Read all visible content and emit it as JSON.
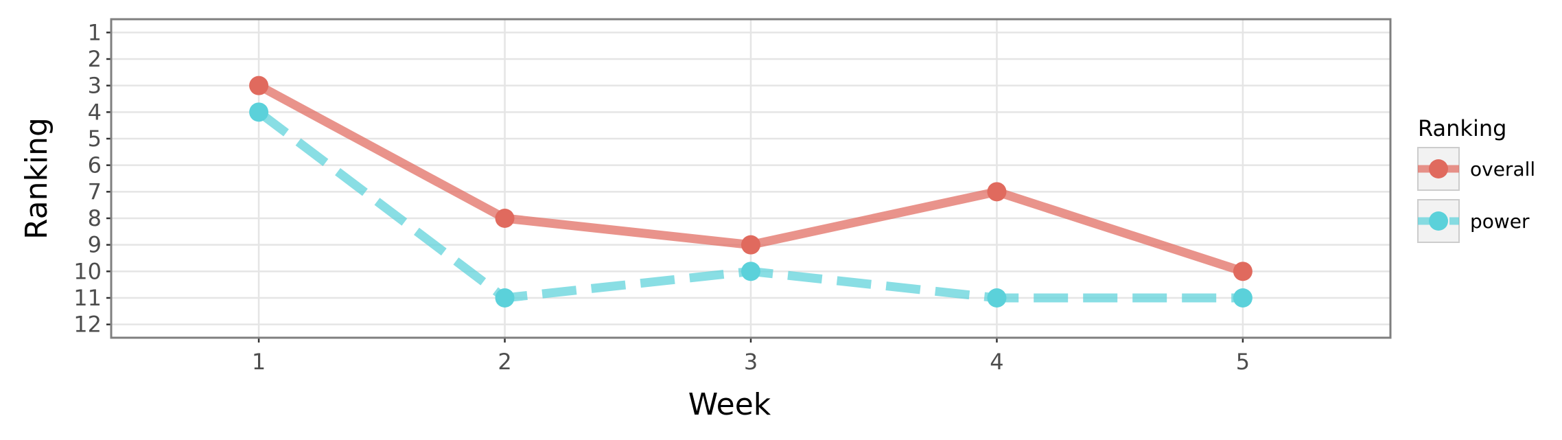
{
  "chart_data": {
    "type": "line",
    "title": "",
    "xlabel": "Week",
    "ylabel": "Ranking",
    "x": [
      1,
      2,
      3,
      4,
      5
    ],
    "xlim": [
      0.4,
      5.6
    ],
    "ylim": [
      12.5,
      0.5
    ],
    "y_reversed": true,
    "x_ticks": [
      "1",
      "2",
      "3",
      "4",
      "5"
    ],
    "y_ticks": [
      "1",
      "2",
      "3",
      "4",
      "5",
      "6",
      "7",
      "8",
      "9",
      "10",
      "11",
      "12"
    ],
    "grid": true,
    "legend": {
      "title": "Ranking",
      "placement": "right"
    },
    "series": [
      {
        "name": "overall",
        "values": [
          3,
          8,
          9,
          7,
          10
        ],
        "color": "#e06a5e",
        "line_style": "solid"
      },
      {
        "name": "power",
        "values": [
          4,
          11,
          10,
          11,
          11
        ],
        "color": "#5bd1da",
        "line_style": "dashed"
      }
    ]
  }
}
